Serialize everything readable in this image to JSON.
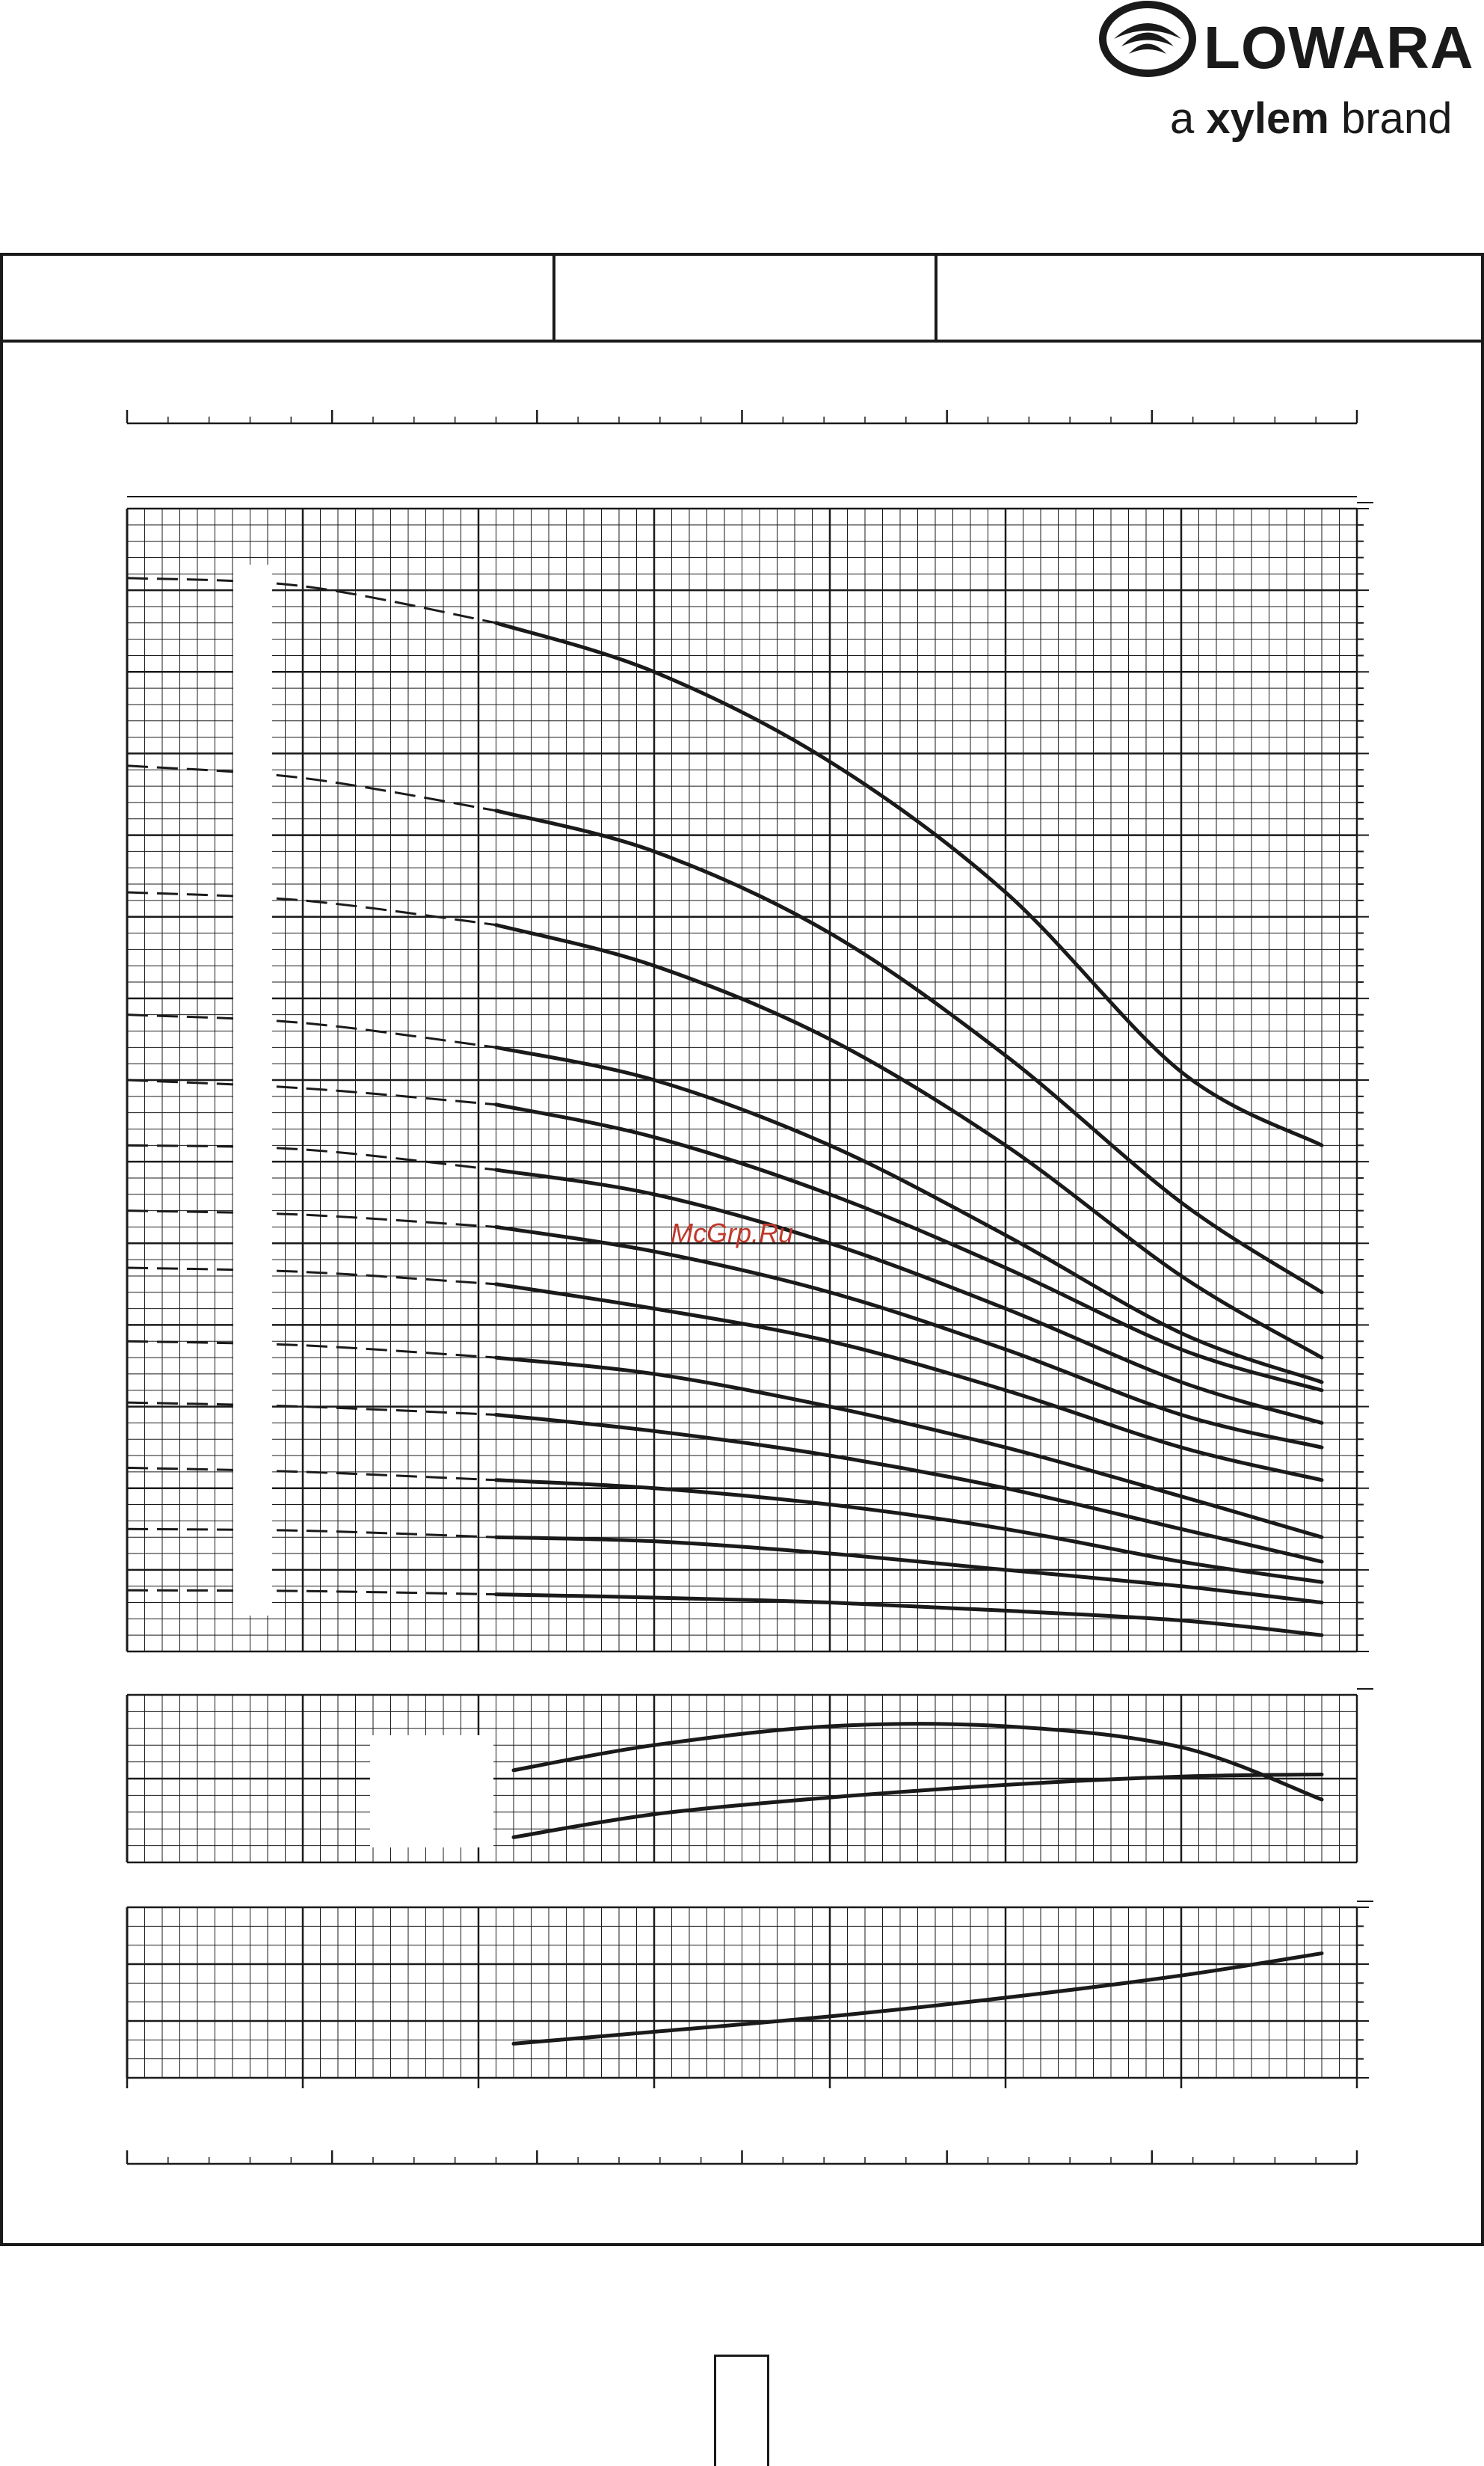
{
  "brand": {
    "name": "LOWARA",
    "tagline_prefix": "a",
    "tagline_bold": "xylem",
    "tagline_suffix": "brand",
    "color": "#1a1a1a"
  },
  "watermark": {
    "text": "McGrp.Ru",
    "color": "#c0392b"
  },
  "header": {
    "cells": [
      "",
      "",
      ""
    ]
  },
  "page_number": "",
  "chart_data": [
    {
      "type": "line",
      "panel": "head",
      "title": "",
      "xlabel": "",
      "ylabel": "",
      "xlim": [
        0,
        7
      ],
      "ylim": [
        0,
        14
      ],
      "grid": true,
      "line_color": "#1a1a1a",
      "series": [
        {
          "solid_x": [
            2.1,
            3.0,
            4.0,
            5.0,
            6.0,
            6.8
          ],
          "solid_y": [
            12.6,
            12.0,
            10.9,
            9.3,
            7.1,
            6.2
          ],
          "dashed_x": [
            0.0,
            1.0,
            2.1
          ],
          "dashed_y": [
            13.15,
            13.05,
            12.6
          ]
        },
        {
          "solid_x": [
            2.1,
            3.0,
            4.0,
            5.0,
            6.0,
            6.8
          ],
          "solid_y": [
            10.3,
            9.8,
            8.8,
            7.3,
            5.5,
            4.4
          ],
          "dashed_x": [
            0.0,
            1.0,
            2.1
          ],
          "dashed_y": [
            10.85,
            10.7,
            10.3
          ]
        },
        {
          "solid_x": [
            2.1,
            3.0,
            4.0,
            5.0,
            6.0,
            6.8
          ],
          "solid_y": [
            8.9,
            8.4,
            7.5,
            6.2,
            4.6,
            3.6
          ],
          "dashed_x": [
            0.0,
            1.0,
            2.1
          ],
          "dashed_y": [
            9.3,
            9.2,
            8.9
          ]
        },
        {
          "solid_x": [
            2.1,
            3.0,
            4.0,
            5.0,
            6.0,
            6.8
          ],
          "solid_y": [
            7.4,
            7.0,
            6.2,
            5.1,
            3.9,
            3.3
          ],
          "dashed_x": [
            0.0,
            1.0,
            2.1
          ],
          "dashed_y": [
            7.8,
            7.7,
            7.4
          ]
        },
        {
          "solid_x": [
            2.1,
            3.0,
            4.0,
            5.0,
            6.0,
            6.8
          ],
          "solid_y": [
            6.7,
            6.3,
            5.6,
            4.7,
            3.7,
            3.2
          ],
          "dashed_x": [
            0.0,
            1.0,
            2.1
          ],
          "dashed_y": [
            7.0,
            6.9,
            6.7
          ]
        },
        {
          "solid_x": [
            2.1,
            3.0,
            4.0,
            5.0,
            6.0,
            6.8
          ],
          "solid_y": [
            5.9,
            5.6,
            5.0,
            4.2,
            3.3,
            2.8
          ],
          "dashed_x": [
            0.0,
            1.0,
            2.1
          ],
          "dashed_y": [
            6.2,
            6.15,
            5.9
          ]
        },
        {
          "solid_x": [
            2.1,
            3.0,
            4.0,
            5.0,
            6.0,
            6.8
          ],
          "solid_y": [
            5.2,
            4.9,
            4.4,
            3.7,
            2.9,
            2.5
          ],
          "dashed_x": [
            0.0,
            1.0,
            2.1
          ],
          "dashed_y": [
            5.4,
            5.35,
            5.2
          ]
        },
        {
          "solid_x": [
            2.1,
            3.0,
            4.0,
            5.0,
            6.0,
            6.8
          ],
          "solid_y": [
            4.5,
            4.2,
            3.8,
            3.2,
            2.5,
            2.1
          ],
          "dashed_x": [
            0.0,
            1.0,
            2.1
          ],
          "dashed_y": [
            4.7,
            4.65,
            4.5
          ]
        },
        {
          "solid_x": [
            2.1,
            3.0,
            4.0,
            5.0,
            6.0,
            6.8
          ],
          "solid_y": [
            3.6,
            3.4,
            3.0,
            2.5,
            1.9,
            1.4
          ],
          "dashed_x": [
            0.0,
            1.0,
            2.1
          ],
          "dashed_y": [
            3.8,
            3.75,
            3.6
          ]
        },
        {
          "solid_x": [
            2.1,
            3.0,
            4.0,
            5.0,
            6.0,
            6.8
          ],
          "solid_y": [
            2.9,
            2.7,
            2.4,
            2.0,
            1.5,
            1.1
          ],
          "dashed_x": [
            0.0,
            1.0,
            2.1
          ],
          "dashed_y": [
            3.05,
            3.0,
            2.9
          ]
        },
        {
          "solid_x": [
            2.1,
            3.0,
            4.0,
            5.0,
            6.0,
            6.8
          ],
          "solid_y": [
            2.1,
            2.0,
            1.8,
            1.5,
            1.1,
            0.85
          ],
          "dashed_x": [
            0.0,
            1.0,
            2.1
          ],
          "dashed_y": [
            2.25,
            2.2,
            2.1
          ]
        },
        {
          "solid_x": [
            2.1,
            3.0,
            4.0,
            5.0,
            6.0,
            6.8
          ],
          "solid_y": [
            1.4,
            1.35,
            1.2,
            1.0,
            0.8,
            0.6
          ],
          "dashed_x": [
            0.0,
            1.0,
            2.1
          ],
          "dashed_y": [
            1.5,
            1.48,
            1.4
          ]
        },
        {
          "solid_x": [
            2.1,
            3.0,
            4.0,
            5.0,
            6.0,
            6.8
          ],
          "solid_y": [
            0.7,
            0.66,
            0.6,
            0.5,
            0.38,
            0.2
          ],
          "dashed_x": [
            0.0,
            1.0,
            2.1
          ],
          "dashed_y": [
            0.75,
            0.74,
            0.7
          ]
        }
      ]
    },
    {
      "type": "line",
      "panel": "efficiency_npsh",
      "title": "",
      "xlabel": "",
      "ylabel": "",
      "xlim": [
        0,
        7
      ],
      "ylim": [
        0,
        4
      ],
      "grid": true,
      "line_color": "#1a1a1a",
      "series": [
        {
          "x": [
            2.2,
            3.0,
            4.0,
            5.0,
            6.0,
            6.8
          ],
          "y": [
            2.2,
            2.8,
            3.25,
            3.25,
            2.75,
            1.5
          ]
        },
        {
          "x": [
            2.2,
            3.0,
            4.0,
            5.0,
            6.0,
            6.8
          ],
          "y": [
            0.6,
            1.15,
            1.55,
            1.85,
            2.05,
            2.1
          ]
        }
      ]
    },
    {
      "type": "line",
      "panel": "power",
      "title": "",
      "xlabel": "",
      "ylabel": "",
      "xlim": [
        0,
        7
      ],
      "ylim": [
        0,
        5
      ],
      "grid": true,
      "line_color": "#1a1a1a",
      "series": [
        {
          "x": [
            2.2,
            3.0,
            4.0,
            5.0,
            6.0,
            6.8
          ],
          "y": [
            1.0,
            1.35,
            1.8,
            2.35,
            3.0,
            3.65
          ]
        }
      ]
    }
  ]
}
